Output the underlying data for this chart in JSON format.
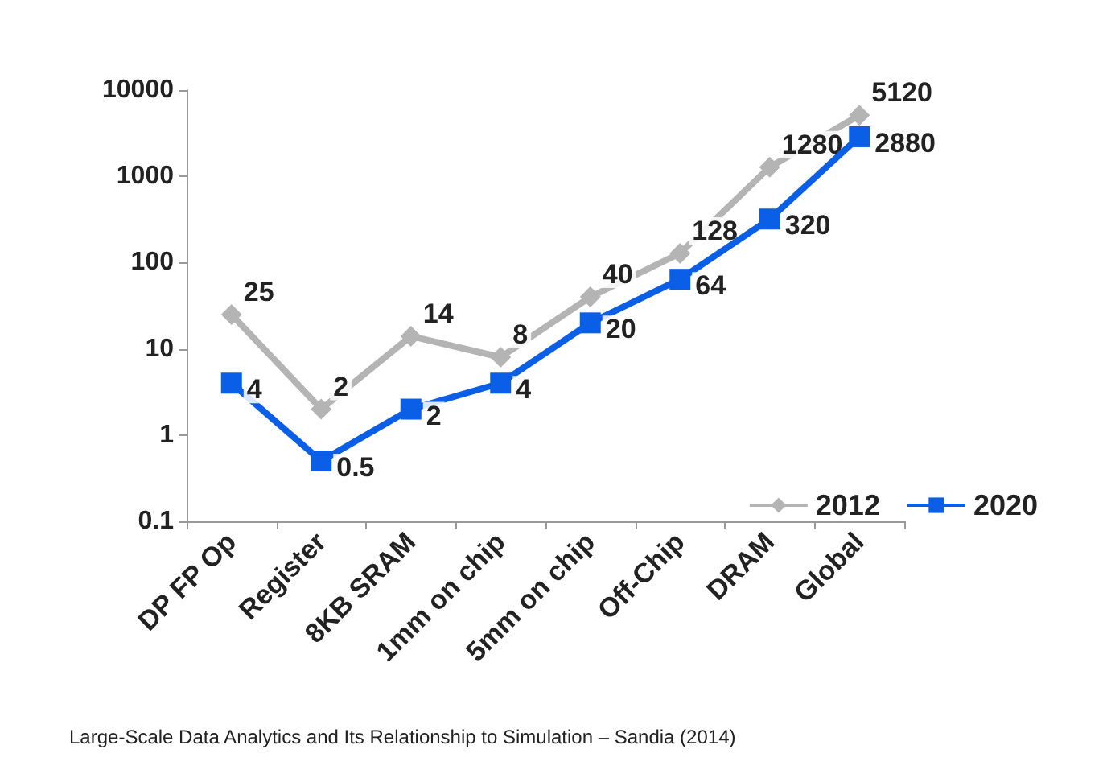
{
  "chart_data": {
    "type": "line",
    "categories": [
      "DP FP Op",
      "Register",
      "8KB SRAM",
      "1mm on chip",
      "5mm on chip",
      "Off-Chip",
      "DRAM",
      "Global"
    ],
    "series": [
      {
        "name": "2012",
        "color": "#b4b4b4",
        "marker": "diamond",
        "values": [
          25,
          2,
          14,
          8,
          40,
          128,
          1280,
          5120
        ]
      },
      {
        "name": "2020",
        "color": "#0b5ee6",
        "marker": "square",
        "values": [
          4,
          0.5,
          2,
          4,
          20,
          64,
          320,
          2880
        ]
      }
    ],
    "log": "y",
    "ylim": [
      0.1,
      10000
    ],
    "yticks": [
      0.1,
      1,
      10,
      100,
      1000,
      10000
    ],
    "grid": false,
    "data_labels": true,
    "legend": "bottom right",
    "line_style": "solid",
    "annotations": [
      "Large-Scale Data Analytics and Its Relationship to Simulation – Sandia (2014)"
    ]
  }
}
